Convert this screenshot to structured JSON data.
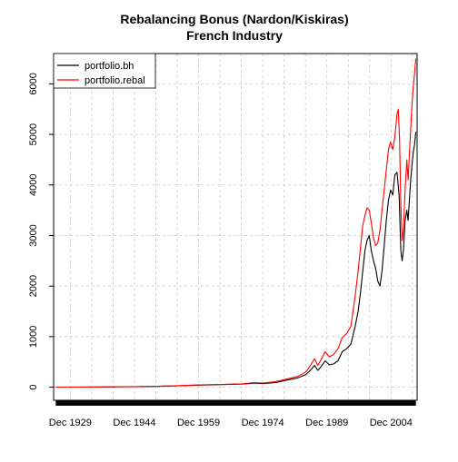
{
  "chart_data": {
    "type": "line",
    "title": "Rebalancing Bonus (Nardon/Kiskiras)",
    "subtitle": "French Industry",
    "xlabel": "",
    "ylabel": "",
    "x_range": [
      1926,
      2011
    ],
    "ylim": [
      -260,
      6600
    ],
    "grid": true,
    "legend_position": "top-left",
    "x_tick_labels": [
      {
        "x": 1929.9,
        "label": "Dec 1929"
      },
      {
        "x": 1944.9,
        "label": "Dec 1944"
      },
      {
        "x": 1959.9,
        "label": "Dec 1959"
      },
      {
        "x": 1974.9,
        "label": "Dec 1974"
      },
      {
        "x": 1989.9,
        "label": "Dec 1989"
      },
      {
        "x": 2004.9,
        "label": "Dec 2004"
      }
    ],
    "y_ticks": [
      0,
      1000,
      2000,
      3000,
      4000,
      5000,
      6000
    ],
    "series": [
      {
        "name": "portfolio.bh",
        "color": "#000000",
        "points": [
          [
            1926.5,
            0
          ],
          [
            1935,
            3
          ],
          [
            1945,
            10
          ],
          [
            1950,
            15
          ],
          [
            1955,
            25
          ],
          [
            1960,
            40
          ],
          [
            1965,
            50
          ],
          [
            1970,
            60
          ],
          [
            1973,
            80
          ],
          [
            1975,
            70
          ],
          [
            1978,
            90
          ],
          [
            1980,
            130
          ],
          [
            1983,
            180
          ],
          [
            1985,
            250
          ],
          [
            1986,
            330
          ],
          [
            1987,
            430
          ],
          [
            1987.8,
            330
          ],
          [
            1988.5,
            400
          ],
          [
            1989.5,
            520
          ],
          [
            1990.5,
            440
          ],
          [
            1991.5,
            460
          ],
          [
            1992.5,
            520
          ],
          [
            1993.5,
            700
          ],
          [
            1994.5,
            760
          ],
          [
            1995.5,
            850
          ],
          [
            1996.5,
            1200
          ],
          [
            1997.2,
            1500
          ],
          [
            1997.8,
            1900
          ],
          [
            1998.3,
            2300
          ],
          [
            1998.8,
            2700
          ],
          [
            1999.3,
            2900
          ],
          [
            1999.8,
            3000
          ],
          [
            2000.3,
            2700
          ],
          [
            2000.8,
            2500
          ],
          [
            2001.3,
            2350
          ],
          [
            2001.8,
            2100
          ],
          [
            2002.3,
            2000
          ],
          [
            2002.8,
            2300
          ],
          [
            2003.3,
            2800
          ],
          [
            2003.8,
            3300
          ],
          [
            2004.3,
            3700
          ],
          [
            2004.8,
            3900
          ],
          [
            2005.3,
            3800
          ],
          [
            2005.8,
            4200
          ],
          [
            2006.3,
            4250
          ],
          [
            2006.8,
            3800
          ],
          [
            2007.2,
            2700
          ],
          [
            2007.5,
            2500
          ],
          [
            2007.8,
            2700
          ],
          [
            2008.2,
            3300
          ],
          [
            2008.6,
            3500
          ],
          [
            2008.9,
            3300
          ],
          [
            2009.2,
            3700
          ],
          [
            2009.5,
            4100
          ],
          [
            2009.8,
            4400
          ],
          [
            2010.1,
            4650
          ],
          [
            2010.4,
            4800
          ],
          [
            2010.7,
            5050
          ]
        ]
      },
      {
        "name": "portfolio.rebal",
        "color": "#ff0000",
        "points": [
          [
            1926.5,
            0
          ],
          [
            1935,
            3
          ],
          [
            1945,
            12
          ],
          [
            1950,
            18
          ],
          [
            1955,
            30
          ],
          [
            1960,
            45
          ],
          [
            1965,
            55
          ],
          [
            1970,
            65
          ],
          [
            1973,
            90
          ],
          [
            1975,
            80
          ],
          [
            1978,
            110
          ],
          [
            1980,
            150
          ],
          [
            1983,
            210
          ],
          [
            1985,
            300
          ],
          [
            1986,
            420
          ],
          [
            1987,
            560
          ],
          [
            1987.8,
            430
          ],
          [
            1988.5,
            540
          ],
          [
            1989.5,
            700
          ],
          [
            1990.5,
            600
          ],
          [
            1991.5,
            650
          ],
          [
            1992.5,
            760
          ],
          [
            1993.5,
            980
          ],
          [
            1994.5,
            1060
          ],
          [
            1995.5,
            1200
          ],
          [
            1996.5,
            1800
          ],
          [
            1997.2,
            2300
          ],
          [
            1997.8,
            2800
          ],
          [
            1998.3,
            3200
          ],
          [
            1998.8,
            3400
          ],
          [
            1999.3,
            3550
          ],
          [
            1999.8,
            3500
          ],
          [
            2000.3,
            3250
          ],
          [
            2000.8,
            2950
          ],
          [
            2001.3,
            2800
          ],
          [
            2001.8,
            2850
          ],
          [
            2002.3,
            3100
          ],
          [
            2002.8,
            3500
          ],
          [
            2003.3,
            3900
          ],
          [
            2003.8,
            4300
          ],
          [
            2004.3,
            4700
          ],
          [
            2004.8,
            4850
          ],
          [
            2005.3,
            4700
          ],
          [
            2005.8,
            4950
          ],
          [
            2006.3,
            5400
          ],
          [
            2006.6,
            5500
          ],
          [
            2006.9,
            4900
          ],
          [
            2007.2,
            3600
          ],
          [
            2007.5,
            2900
          ],
          [
            2007.8,
            3100
          ],
          [
            2008.2,
            3900
          ],
          [
            2008.6,
            4500
          ],
          [
            2008.9,
            4100
          ],
          [
            2009.2,
            4600
          ],
          [
            2009.5,
            5100
          ],
          [
            2009.8,
            5600
          ],
          [
            2010.1,
            5950
          ],
          [
            2010.4,
            6200
          ],
          [
            2010.7,
            6500
          ]
        ]
      }
    ]
  }
}
